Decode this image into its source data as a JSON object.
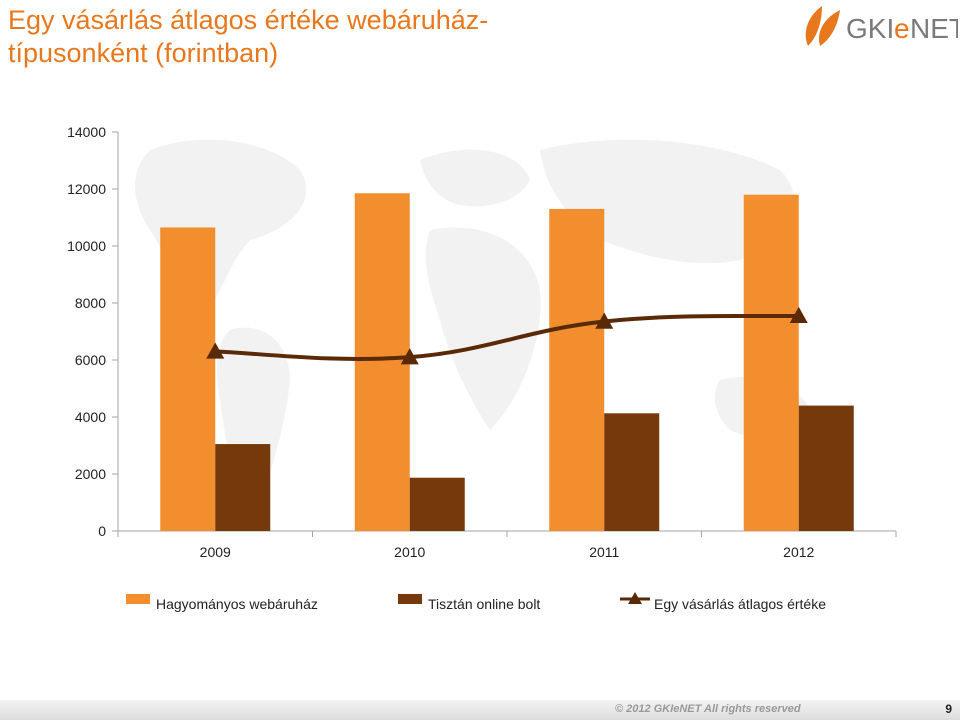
{
  "slide": {
    "title": "Egy vásárlás átlagos értéke webáruház-típusonként (forintban)",
    "logo_text": "GKIeNET",
    "footer_text": "© 2012 GKIeNET All rights reserved",
    "page_number": "9"
  },
  "colors": {
    "title": "#e8781e",
    "traditional": "#f28e2e",
    "online": "#76390c",
    "line": "#5a2a06",
    "axis": "#a6a6a6"
  },
  "chart_data": {
    "type": "bar",
    "categories": [
      "2009",
      "2010",
      "2011",
      "2012"
    ],
    "series": [
      {
        "name": "Hagyományos webáruház",
        "type": "bar",
        "color": "#f28e2e",
        "values": [
          10650,
          11850,
          11300,
          11800
        ]
      },
      {
        "name": "Tisztán online bolt",
        "type": "bar",
        "color": "#76390c",
        "values": [
          3050,
          1870,
          4130,
          4400
        ]
      },
      {
        "name": "Egy vásárlás átlagos értéke",
        "type": "line",
        "marker": "triangle",
        "smooth": true,
        "color": "#5a2a06",
        "values": [
          6300,
          6100,
          7350,
          7550
        ]
      }
    ],
    "ylim": [
      0,
      14000
    ],
    "yticks": [
      "0",
      "2000",
      "4000",
      "6000",
      "8000",
      "10000",
      "12000",
      "14000"
    ],
    "grid": false,
    "legend": "bottom"
  }
}
